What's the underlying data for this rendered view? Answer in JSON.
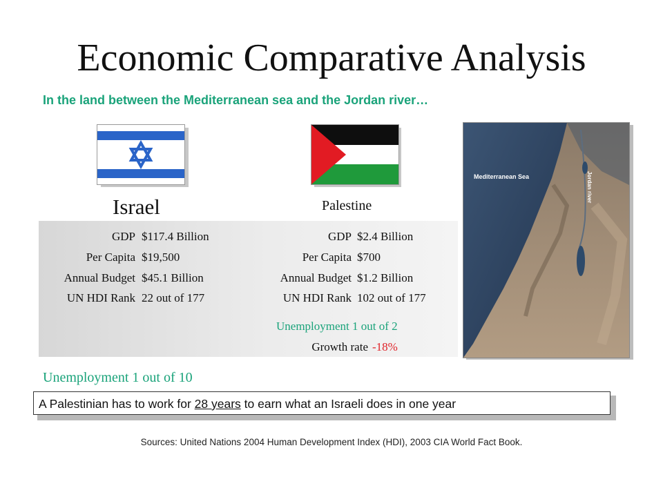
{
  "slide": {
    "title": "Economic Comparative Analysis",
    "subtitle": "In the land between the Mediterranean sea and the Jordan river…"
  },
  "israel": {
    "name": "Israel",
    "stats": [
      {
        "label": "GDP",
        "value": "$117.4 Billion"
      },
      {
        "label": "Per Capita",
        "value": "$19,500"
      },
      {
        "label": "Annual Budget",
        "value": "$45.1 Billion"
      },
      {
        "label": "UN HDI Rank",
        "value": "22 out of 177"
      }
    ],
    "unemployment": "Unemployment 1 out of 10"
  },
  "palestine": {
    "name": "Palestine",
    "stats": [
      {
        "label": "GDP",
        "value": "$2.4 Billion"
      },
      {
        "label": "Per Capita",
        "value": "$700"
      },
      {
        "label": "Annual Budget",
        "value": "$1.2 Billion"
      },
      {
        "label": "UN HDI Rank",
        "value": "102 out of 177"
      }
    ],
    "unemployment": "Unemployment 1 out of 2",
    "growth_label": "Growth rate",
    "growth_value": "-18%"
  },
  "map": {
    "sea_label": "Mediterranean Sea",
    "river_label": "Jordan river"
  },
  "banner": {
    "before": "A Palestinian has to work for ",
    "emphasis": "28 years",
    "after": " to earn what an Israeli does in one year"
  },
  "sources": "Sources: United Nations 2004 Human Development Index (HDI), 2003 CIA World Fact Book.",
  "colors": {
    "accent_green": "#1aa37a",
    "negative_red": "#e0242a",
    "israel_blue": "#2a64c8",
    "palestine_red": "#e21b23",
    "palestine_green": "#1f9a3b"
  },
  "icons": {
    "israel_flag": "israel-flag-icon",
    "palestine_flag": "palestine-flag-icon",
    "map": "satellite-map-image"
  }
}
